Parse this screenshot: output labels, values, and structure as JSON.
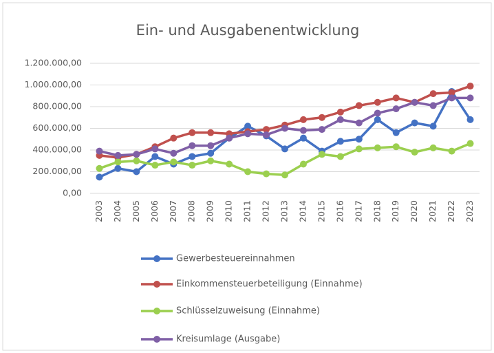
{
  "chart_data": {
    "type": "line",
    "title": "Ein- und Ausgabenentwicklung",
    "categories": [
      "2003",
      "2004",
      "2005",
      "2006",
      "2007",
      "2008",
      "2009",
      "2010",
      "2011",
      "2012",
      "2013",
      "2014",
      "2015",
      "2016",
      "2017",
      "2018",
      "2019",
      "2020",
      "2021",
      "2022",
      "2023"
    ],
    "series": [
      {
        "name": "Gewerbesteuereinnahmen",
        "color": "#4472c4",
        "values": [
          150000,
          230000,
          200000,
          340000,
          270000,
          340000,
          370000,
          510000,
          620000,
          530000,
          410000,
          510000,
          390000,
          480000,
          500000,
          680000,
          560000,
          650000,
          620000,
          940000,
          680000
        ]
      },
      {
        "name": "Einkommensteuerbeteiligung (Einnahme)",
        "color": "#c0504d",
        "values": [
          350000,
          330000,
          360000,
          430000,
          510000,
          560000,
          560000,
          550000,
          570000,
          590000,
          630000,
          680000,
          700000,
          750000,
          810000,
          840000,
          880000,
          840000,
          920000,
          930000,
          990000
        ]
      },
      {
        "name": "Schlüsselzuweisung (Einnahme)",
        "color": "#9bcf4f",
        "values": [
          230000,
          290000,
          300000,
          260000,
          290000,
          260000,
          300000,
          270000,
          200000,
          180000,
          170000,
          270000,
          360000,
          340000,
          410000,
          420000,
          430000,
          380000,
          420000,
          390000,
          460000
        ]
      },
      {
        "name": "Kreisumlage (Ausgabe)",
        "color": "#7f5fa6",
        "values": [
          390000,
          350000,
          360000,
          410000,
          370000,
          440000,
          440000,
          510000,
          550000,
          540000,
          600000,
          580000,
          590000,
          680000,
          650000,
          740000,
          780000,
          840000,
          810000,
          880000,
          880000
        ]
      }
    ],
    "ylim": [
      0,
      1200000
    ],
    "yticks": [
      {
        "value": 0,
        "label": "0,00"
      },
      {
        "value": 200000,
        "label": "200.000,00"
      },
      {
        "value": 400000,
        "label": "400.000,00"
      },
      {
        "value": 600000,
        "label": "600.000,00"
      },
      {
        "value": 800000,
        "label": "800.000,00"
      },
      {
        "value": 1000000,
        "label": "1.000.000,00"
      },
      {
        "value": 1200000,
        "label": "1.200.000,00"
      }
    ],
    "grid": true
  }
}
